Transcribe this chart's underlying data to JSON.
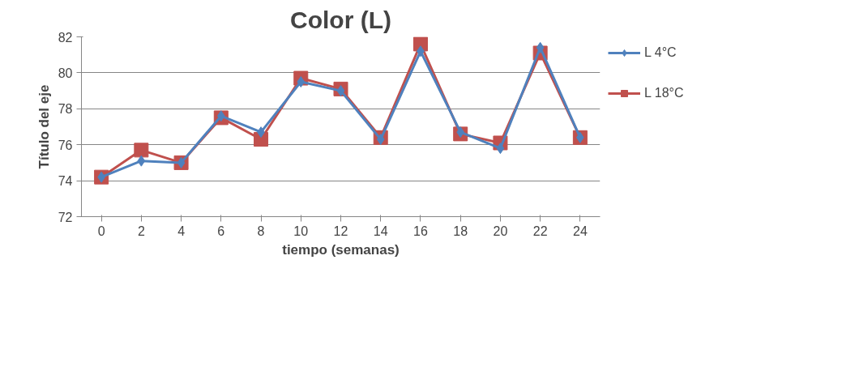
{
  "chart_data": {
    "type": "line",
    "title": "Color (L)",
    "xlabel": "tiempo (semanas)",
    "ylabel": "Título del eje",
    "x": [
      0,
      2,
      4,
      6,
      8,
      10,
      12,
      14,
      16,
      18,
      20,
      22,
      24
    ],
    "xlim": [
      -1,
      25
    ],
    "xticks": [
      0,
      2,
      4,
      6,
      8,
      10,
      12,
      14,
      16,
      18,
      20,
      22,
      24
    ],
    "series": [
      {
        "name": "L 4°C",
        "color": "#4f81bd",
        "marker": "diamond",
        "values": [
          74.2,
          75.1,
          75.0,
          77.6,
          76.7,
          79.5,
          79.0,
          76.3,
          81.2,
          76.7,
          75.8,
          81.4,
          76.4
        ]
      },
      {
        "name": "L 18°C",
        "color": "#c0504d",
        "marker": "square",
        "values": [
          74.2,
          75.7,
          75.0,
          77.5,
          76.3,
          79.7,
          79.1,
          76.4,
          81.6,
          76.6,
          76.1,
          81.1,
          76.4
        ]
      }
    ],
    "ylim": [
      72,
      82
    ],
    "yticks": [
      72,
      74,
      76,
      78,
      80,
      82
    ],
    "grid": "y",
    "legend": "right"
  }
}
